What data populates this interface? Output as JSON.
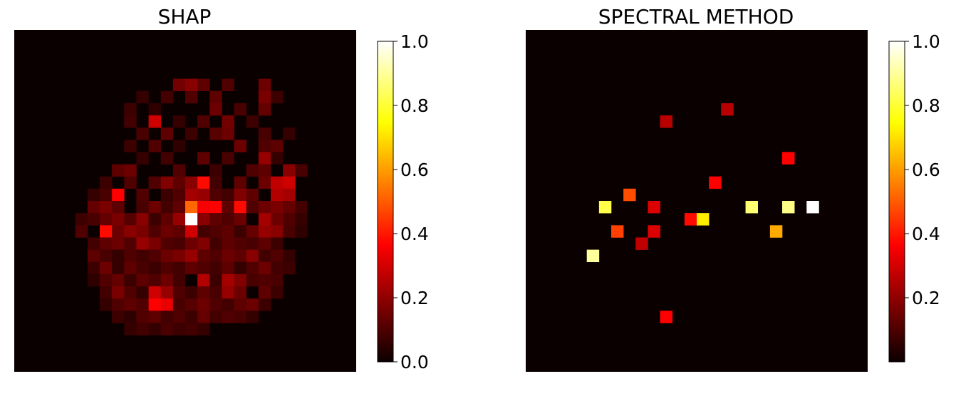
{
  "chart_data": [
    {
      "type": "heatmap",
      "title": "SHAP",
      "grid_size": [
        28,
        28
      ],
      "colormap": "hot",
      "axes_visible": false,
      "colorbar": {
        "min": 0.0,
        "max": 1.0,
        "tick_values": [
          0.0,
          0.2,
          0.4,
          0.6,
          0.8,
          1.0
        ],
        "tick_labels": [
          "0.0",
          "0.2",
          "0.4",
          "0.6",
          "0.8",
          "1.0"
        ]
      },
      "cells": [
        [
          13,
          4,
          0.15
        ],
        [
          14,
          4,
          0.18
        ],
        [
          15,
          4,
          0.12
        ],
        [
          17,
          4,
          0.1
        ],
        [
          20,
          4,
          0.14
        ],
        [
          10,
          5,
          0.06
        ],
        [
          12,
          5,
          0.08
        ],
        [
          14,
          5,
          0.1
        ],
        [
          16,
          5,
          0.12
        ],
        [
          20,
          5,
          0.16
        ],
        [
          21,
          5,
          0.07
        ],
        [
          9,
          6,
          0.07
        ],
        [
          11,
          6,
          0.05
        ],
        [
          16,
          6,
          0.14
        ],
        [
          18,
          6,
          0.09
        ],
        [
          20,
          6,
          0.13
        ],
        [
          9,
          7,
          0.08
        ],
        [
          11,
          7,
          0.28
        ],
        [
          13,
          7,
          0.06
        ],
        [
          15,
          7,
          0.1
        ],
        [
          17,
          7,
          0.15
        ],
        [
          19,
          7,
          0.07
        ],
        [
          10,
          8,
          0.09
        ],
        [
          12,
          8,
          0.12
        ],
        [
          14,
          8,
          0.07
        ],
        [
          16,
          8,
          0.11
        ],
        [
          17,
          8,
          0.14
        ],
        [
          20,
          8,
          0.09
        ],
        [
          22,
          8,
          0.06
        ],
        [
          9,
          9,
          0.07
        ],
        [
          11,
          9,
          0.1
        ],
        [
          13,
          9,
          0.05
        ],
        [
          18,
          9,
          0.14
        ],
        [
          20,
          9,
          0.1
        ],
        [
          21,
          9,
          0.12
        ],
        [
          10,
          10,
          0.06
        ],
        [
          12,
          10,
          0.08
        ],
        [
          15,
          10,
          0.12
        ],
        [
          17,
          10,
          0.09
        ],
        [
          20,
          10,
          0.2
        ],
        [
          21,
          10,
          0.06
        ],
        [
          8,
          11,
          0.12
        ],
        [
          9,
          11,
          0.14
        ],
        [
          13,
          11,
          0.1
        ],
        [
          16,
          11,
          0.07
        ],
        [
          19,
          11,
          0.1
        ],
        [
          20,
          11,
          0.12
        ],
        [
          22,
          11,
          0.18
        ],
        [
          23,
          11,
          0.09
        ],
        [
          7,
          12,
          0.07
        ],
        [
          9,
          12,
          0.1
        ],
        [
          11,
          12,
          0.1
        ],
        [
          12,
          12,
          0.17
        ],
        [
          13,
          12,
          0.12
        ],
        [
          14,
          12,
          0.18
        ],
        [
          15,
          12,
          0.38
        ],
        [
          16,
          12,
          0.08
        ],
        [
          18,
          12,
          0.12
        ],
        [
          20,
          12,
          0.14
        ],
        [
          21,
          12,
          0.26
        ],
        [
          22,
          12,
          0.28
        ],
        [
          6,
          13,
          0.06
        ],
        [
          7,
          13,
          0.09
        ],
        [
          8,
          13,
          0.36
        ],
        [
          10,
          13,
          0.1
        ],
        [
          12,
          13,
          0.07
        ],
        [
          13,
          13,
          0.1
        ],
        [
          14,
          13,
          0.22
        ],
        [
          15,
          13,
          0.2
        ],
        [
          16,
          13,
          0.1
        ],
        [
          17,
          13,
          0.08
        ],
        [
          18,
          13,
          0.17
        ],
        [
          19,
          13,
          0.12
        ],
        [
          21,
          13,
          0.24
        ],
        [
          22,
          13,
          0.22
        ],
        [
          6,
          14,
          0.13
        ],
        [
          7,
          14,
          0.16
        ],
        [
          8,
          14,
          0.12
        ],
        [
          10,
          14,
          0.09
        ],
        [
          11,
          14,
          0.14
        ],
        [
          12,
          14,
          0.08
        ],
        [
          13,
          14,
          0.12
        ],
        [
          14,
          14,
          0.52
        ],
        [
          15,
          14,
          0.34
        ],
        [
          16,
          14,
          0.36
        ],
        [
          17,
          14,
          0.12
        ],
        [
          18,
          14,
          0.38
        ],
        [
          19,
          14,
          0.1
        ],
        [
          20,
          14,
          0.14
        ],
        [
          21,
          14,
          0.16
        ],
        [
          22,
          14,
          0.13
        ],
        [
          23,
          14,
          0.08
        ],
        [
          5,
          15,
          0.07
        ],
        [
          6,
          15,
          0.09
        ],
        [
          7,
          15,
          0.13
        ],
        [
          8,
          15,
          0.16
        ],
        [
          9,
          15,
          0.11
        ],
        [
          10,
          15,
          0.18
        ],
        [
          11,
          15,
          0.07
        ],
        [
          12,
          15,
          0.12
        ],
        [
          13,
          15,
          0.2
        ],
        [
          14,
          15,
          1.0
        ],
        [
          15,
          15,
          0.18
        ],
        [
          16,
          15,
          0.12
        ],
        [
          17,
          15,
          0.1
        ],
        [
          18,
          15,
          0.14
        ],
        [
          20,
          15,
          0.22
        ],
        [
          21,
          15,
          0.14
        ],
        [
          22,
          15,
          0.1
        ],
        [
          23,
          15,
          0.06
        ],
        [
          5,
          16,
          0.1
        ],
        [
          7,
          16,
          0.38
        ],
        [
          8,
          16,
          0.14
        ],
        [
          9,
          16,
          0.18
        ],
        [
          10,
          16,
          0.16
        ],
        [
          11,
          16,
          0.1
        ],
        [
          12,
          16,
          0.14
        ],
        [
          13,
          16,
          0.12
        ],
        [
          14,
          16,
          0.28
        ],
        [
          15,
          16,
          0.08
        ],
        [
          16,
          16,
          0.1
        ],
        [
          17,
          16,
          0.12
        ],
        [
          18,
          16,
          0.07
        ],
        [
          19,
          16,
          0.13
        ],
        [
          20,
          16,
          0.2
        ],
        [
          21,
          16,
          0.18
        ],
        [
          22,
          16,
          0.09
        ],
        [
          23,
          16,
          0.05
        ],
        [
          6,
          17,
          0.08
        ],
        [
          7,
          17,
          0.12
        ],
        [
          8,
          17,
          0.14
        ],
        [
          9,
          17,
          0.1
        ],
        [
          10,
          17,
          0.2
        ],
        [
          11,
          17,
          0.16
        ],
        [
          12,
          17,
          0.1
        ],
        [
          13,
          17,
          0.09
        ],
        [
          14,
          17,
          0.14
        ],
        [
          15,
          17,
          0.17
        ],
        [
          16,
          17,
          0.08
        ],
        [
          17,
          17,
          0.12
        ],
        [
          18,
          17,
          0.1
        ],
        [
          19,
          17,
          0.09
        ],
        [
          20,
          17,
          0.12
        ],
        [
          21,
          17,
          0.07
        ],
        [
          6,
          18,
          0.12
        ],
        [
          7,
          18,
          0.09
        ],
        [
          8,
          18,
          0.06
        ],
        [
          9,
          18,
          0.1
        ],
        [
          10,
          18,
          0.08
        ],
        [
          11,
          18,
          0.1
        ],
        [
          12,
          18,
          0.14
        ],
        [
          13,
          18,
          0.16
        ],
        [
          14,
          18,
          0.2
        ],
        [
          15,
          18,
          0.12
        ],
        [
          16,
          18,
          0.1
        ],
        [
          17,
          18,
          0.14
        ],
        [
          18,
          18,
          0.12
        ],
        [
          19,
          18,
          0.18
        ],
        [
          20,
          18,
          0.08
        ],
        [
          21,
          18,
          0.1
        ],
        [
          22,
          18,
          0.06
        ],
        [
          6,
          19,
          0.07
        ],
        [
          7,
          19,
          0.14
        ],
        [
          8,
          19,
          0.06
        ],
        [
          9,
          19,
          0.12
        ],
        [
          10,
          19,
          0.09
        ],
        [
          11,
          19,
          0.07
        ],
        [
          12,
          19,
          0.1
        ],
        [
          13,
          19,
          0.08
        ],
        [
          14,
          19,
          0.12
        ],
        [
          15,
          19,
          0.1
        ],
        [
          16,
          19,
          0.08
        ],
        [
          17,
          19,
          0.12
        ],
        [
          18,
          19,
          0.06
        ],
        [
          19,
          19,
          0.1
        ],
        [
          20,
          19,
          0.14
        ],
        [
          21,
          19,
          0.08
        ],
        [
          22,
          19,
          0.07
        ],
        [
          6,
          20,
          0.05
        ],
        [
          7,
          20,
          0.1
        ],
        [
          8,
          20,
          0.13
        ],
        [
          9,
          20,
          0.07
        ],
        [
          10,
          20,
          0.12
        ],
        [
          11,
          20,
          0.1
        ],
        [
          12,
          20,
          0.14
        ],
        [
          13,
          20,
          0.08
        ],
        [
          15,
          20,
          0.24
        ],
        [
          16,
          20,
          0.07
        ],
        [
          17,
          20,
          0.22
        ],
        [
          18,
          20,
          0.17
        ],
        [
          19,
          20,
          0.09
        ],
        [
          20,
          20,
          0.1
        ],
        [
          21,
          20,
          0.09
        ],
        [
          7,
          21,
          0.08
        ],
        [
          8,
          21,
          0.16
        ],
        [
          9,
          21,
          0.1
        ],
        [
          10,
          21,
          0.06
        ],
        [
          11,
          21,
          0.28
        ],
        [
          12,
          21,
          0.2
        ],
        [
          13,
          21,
          0.1
        ],
        [
          14,
          21,
          0.07
        ],
        [
          15,
          21,
          0.12
        ],
        [
          16,
          21,
          0.09
        ],
        [
          17,
          21,
          0.2
        ],
        [
          18,
          21,
          0.14
        ],
        [
          20,
          21,
          0.12
        ],
        [
          21,
          21,
          0.07
        ],
        [
          7,
          22,
          0.06
        ],
        [
          8,
          22,
          0.1
        ],
        [
          9,
          22,
          0.12
        ],
        [
          10,
          22,
          0.1
        ],
        [
          11,
          22,
          0.36
        ],
        [
          12,
          22,
          0.32
        ],
        [
          13,
          22,
          0.09
        ],
        [
          14,
          22,
          0.11
        ],
        [
          15,
          22,
          0.14
        ],
        [
          16,
          22,
          0.1
        ],
        [
          17,
          22,
          0.08
        ],
        [
          18,
          22,
          0.12
        ],
        [
          19,
          22,
          0.14
        ],
        [
          20,
          22,
          0.07
        ],
        [
          8,
          23,
          0.07
        ],
        [
          9,
          23,
          0.05
        ],
        [
          10,
          23,
          0.1
        ],
        [
          11,
          23,
          0.12
        ],
        [
          12,
          23,
          0.08
        ],
        [
          13,
          23,
          0.1
        ],
        [
          14,
          23,
          0.07
        ],
        [
          15,
          23,
          0.13
        ],
        [
          16,
          23,
          0.08
        ],
        [
          17,
          23,
          0.1
        ],
        [
          18,
          23,
          0.09
        ],
        [
          19,
          23,
          0.06
        ],
        [
          9,
          24,
          0.06
        ],
        [
          10,
          24,
          0.08
        ],
        [
          11,
          24,
          0.06
        ],
        [
          12,
          24,
          0.09
        ],
        [
          13,
          24,
          0.07
        ],
        [
          14,
          24,
          0.08
        ],
        [
          15,
          24,
          0.06
        ]
      ]
    },
    {
      "type": "heatmap",
      "title": "SPECTRAL METHOD",
      "grid_size": [
        28,
        28
      ],
      "colormap": "hot",
      "axes_visible": false,
      "colorbar": {
        "min": 0.0,
        "max": 1.0,
        "tick_values": [
          0.2,
          0.4,
          0.6,
          0.8,
          1.0
        ],
        "tick_labels": [
          "0.2",
          "0.4",
          "0.6",
          "0.8",
          "1.0"
        ]
      },
      "cells": [
        [
          16,
          6,
          0.25
        ],
        [
          11,
          7,
          0.25
        ],
        [
          21,
          10,
          0.35
        ],
        [
          15,
          12,
          0.36
        ],
        [
          8,
          13,
          0.48
        ],
        [
          6,
          14,
          0.82
        ],
        [
          10,
          14,
          0.3
        ],
        [
          18,
          14,
          0.86
        ],
        [
          21,
          14,
          0.88
        ],
        [
          23,
          14,
          1.0
        ],
        [
          13,
          15,
          0.38
        ],
        [
          14,
          15,
          0.72
        ],
        [
          7,
          16,
          0.46
        ],
        [
          10,
          16,
          0.3
        ],
        [
          20,
          16,
          0.62
        ],
        [
          9,
          17,
          0.26
        ],
        [
          5,
          18,
          0.9
        ],
        [
          11,
          23,
          0.36
        ]
      ]
    }
  ]
}
